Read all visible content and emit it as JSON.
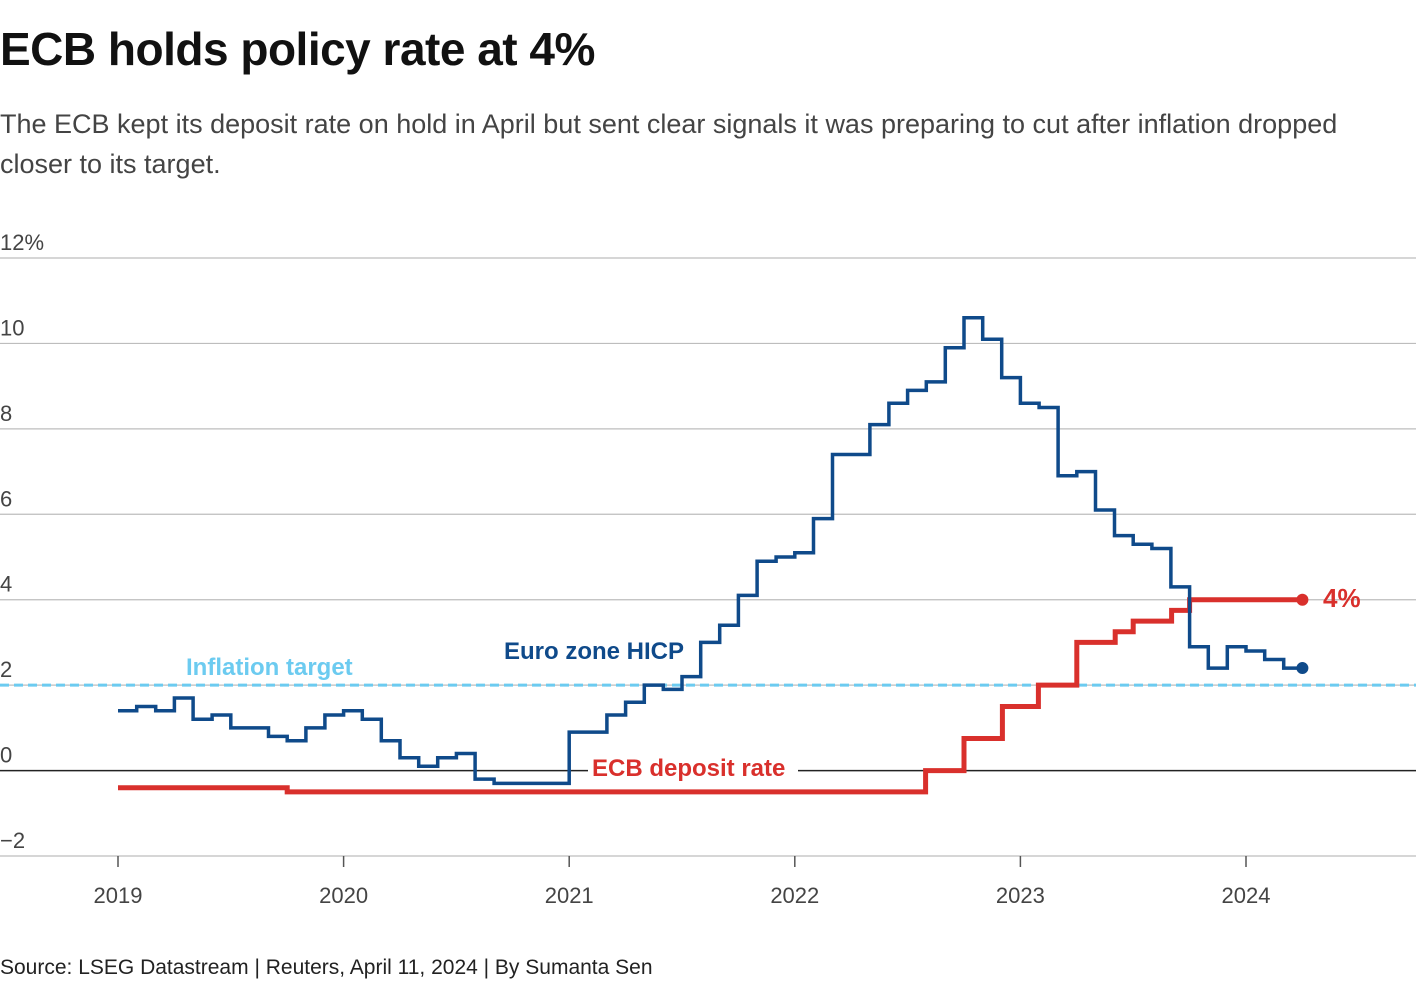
{
  "title": "ECB holds policy rate at 4%",
  "subtitle": "The ECB kept its deposit rate on hold in April but sent clear signals it was preparing to cut after inflation dropped closer to its target.",
  "source": "Source: LSEG Datastream | Reuters, April 11, 2024 | By Sumanta Sen",
  "colors": {
    "hicp": "#0f4a8a",
    "deposit": "#d9302c",
    "target": "#6ccbf0",
    "grid": "#bdbdbd",
    "zero": "#222222"
  },
  "chart_data": {
    "type": "line",
    "step": true,
    "x_unit": "year",
    "xlim": [
      2018.66,
      2024.75
    ],
    "ylim": [
      -2,
      12
    ],
    "y_ticks": [
      {
        "value": 12,
        "label": "12%"
      },
      {
        "value": 10,
        "label": "10"
      },
      {
        "value": 8,
        "label": "8"
      },
      {
        "value": 6,
        "label": "6"
      },
      {
        "value": 4,
        "label": "4"
      },
      {
        "value": 2,
        "label": "2"
      },
      {
        "value": 0,
        "label": "0"
      },
      {
        "value": -2,
        "label": "−2"
      }
    ],
    "x_ticks": [
      {
        "value": 2019,
        "label": "2019"
      },
      {
        "value": 2020,
        "label": "2020"
      },
      {
        "value": 2021,
        "label": "2021"
      },
      {
        "value": 2022,
        "label": "2022"
      },
      {
        "value": 2023,
        "label": "2023"
      },
      {
        "value": 2024,
        "label": "2024"
      }
    ],
    "series": [
      {
        "name": "Euro zone HICP",
        "label": "Euro zone HICP",
        "x": [
          2019.0,
          2019.083,
          2019.167,
          2019.25,
          2019.333,
          2019.417,
          2019.5,
          2019.583,
          2019.667,
          2019.75,
          2019.833,
          2019.917,
          2020.0,
          2020.083,
          2020.167,
          2020.25,
          2020.333,
          2020.417,
          2020.5,
          2020.583,
          2020.667,
          2020.75,
          2020.833,
          2020.917,
          2021.0,
          2021.083,
          2021.167,
          2021.25,
          2021.333,
          2021.417,
          2021.5,
          2021.583,
          2021.667,
          2021.75,
          2021.833,
          2021.917,
          2022.0,
          2022.083,
          2022.167,
          2022.25,
          2022.333,
          2022.417,
          2022.5,
          2022.583,
          2022.667,
          2022.75,
          2022.833,
          2022.917,
          2023.0,
          2023.083,
          2023.167,
          2023.25,
          2023.333,
          2023.417,
          2023.5,
          2023.583,
          2023.667,
          2023.75,
          2023.833,
          2023.917,
          2024.0,
          2024.083,
          2024.167
        ],
        "values": [
          1.4,
          1.5,
          1.4,
          1.7,
          1.2,
          1.3,
          1.0,
          1.0,
          0.8,
          0.7,
          1.0,
          1.3,
          1.4,
          1.2,
          0.7,
          0.3,
          0.1,
          0.3,
          0.4,
          -0.2,
          -0.3,
          -0.3,
          -0.3,
          -0.3,
          0.9,
          0.9,
          1.3,
          1.6,
          2.0,
          1.9,
          2.2,
          3.0,
          3.4,
          4.1,
          4.9,
          5.0,
          5.1,
          5.9,
          7.4,
          7.4,
          8.1,
          8.6,
          8.9,
          9.1,
          9.9,
          10.6,
          10.1,
          9.2,
          8.6,
          8.5,
          6.9,
          7.0,
          6.1,
          5.5,
          5.3,
          5.2,
          4.3,
          2.9,
          2.4,
          2.9,
          2.8,
          2.6,
          2.4
        ],
        "end_marker": true
      },
      {
        "name": "ECB deposit rate",
        "label": "ECB deposit rate",
        "x": [
          2019.0,
          2019.75,
          2022.58,
          2022.75,
          2022.92,
          2023.08,
          2023.25,
          2023.42,
          2023.5,
          2023.67,
          2023.75,
          2024.25
        ],
        "values": [
          -0.4,
          -0.5,
          0.0,
          0.75,
          1.5,
          2.0,
          3.0,
          3.25,
          3.5,
          3.75,
          4.0,
          4.0
        ],
        "end_label": "4%",
        "end_marker": true
      }
    ],
    "reference_lines": [
      {
        "name": "Inflation target",
        "label": "Inflation target",
        "value": 2.0
      }
    ]
  }
}
